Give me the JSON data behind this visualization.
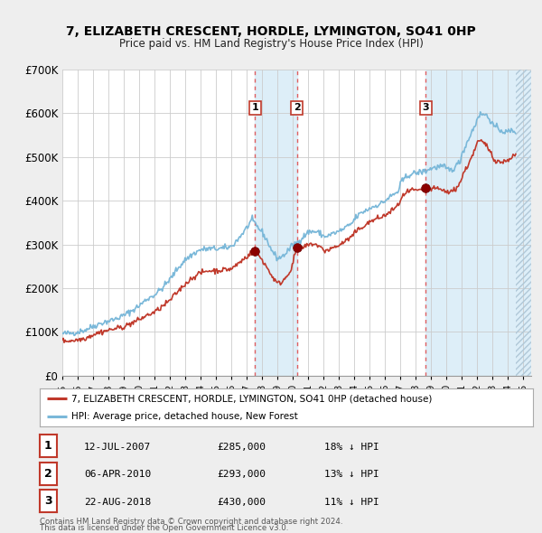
{
  "title": "7, ELIZABETH CRESCENT, HORDLE, LYMINGTON, SO41 0HP",
  "subtitle": "Price paid vs. HM Land Registry's House Price Index (HPI)",
  "legend_label_red": "7, ELIZABETH CRESCENT, HORDLE, LYMINGTON, SO41 0HP (detached house)",
  "legend_label_blue": "HPI: Average price, detached house, New Forest",
  "footer_line1": "Contains HM Land Registry data © Crown copyright and database right 2024.",
  "footer_line2": "This data is licensed under the Open Government Licence v3.0.",
  "transactions": [
    {
      "label": "1",
      "date": "12-JUL-2007",
      "price": 285000,
      "pct": "18%",
      "x_year": 2007.53
    },
    {
      "label": "2",
      "date": "06-APR-2010",
      "price": 293000,
      "pct": "13%",
      "x_year": 2010.26
    },
    {
      "label": "3",
      "date": "22-AUG-2018",
      "price": 430000,
      "pct": "11%",
      "x_year": 2018.64
    }
  ],
  "hpi_color": "#7ab8d9",
  "price_color": "#c0392b",
  "marker_color": "#8b0000",
  "vline_color": "#e05050",
  "shade_color": "#ddeef8",
  "ylim": [
    0,
    700000
  ],
  "yticks": [
    0,
    100000,
    200000,
    300000,
    400000,
    500000,
    600000,
    700000
  ],
  "ytick_labels": [
    "£0",
    "£100K",
    "£200K",
    "£300K",
    "£400K",
    "£500K",
    "£600K",
    "£700K"
  ],
  "xmin": 1995.0,
  "xmax": 2025.5,
  "background_color": "#eeeeee",
  "plot_bg_color": "#ffffff",
  "grid_color": "#cccccc"
}
